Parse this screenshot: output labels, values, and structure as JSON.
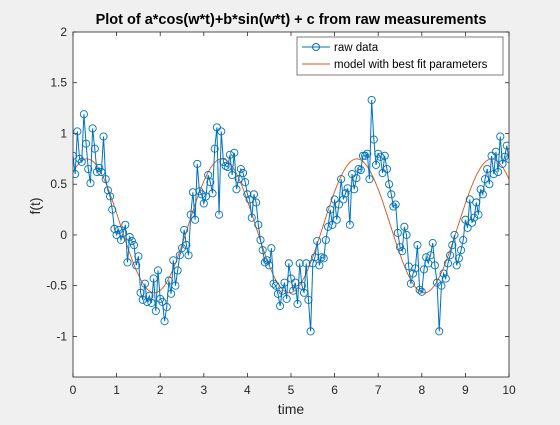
{
  "chart_data": {
    "type": "line",
    "title": "Plot of a*cos(w*t)+b*sin(w*t) + c from raw measurements",
    "xlabel": "time",
    "ylabel": "f(t)",
    "xlim": [
      0,
      10
    ],
    "ylim": [
      -1.4,
      2
    ],
    "x_ticks": [
      "0",
      "1",
      "2",
      "3",
      "4",
      "5",
      "6",
      "7",
      "8",
      "9",
      "10"
    ],
    "y_ticks": [
      "-1",
      "-0.5",
      "0",
      "0.5",
      "1",
      "1.5",
      "2"
    ],
    "y_tick_values": [
      -1,
      -0.5,
      0,
      0.5,
      1,
      1.5,
      2
    ],
    "legend_position": "top-right",
    "series": [
      {
        "name": "raw data",
        "style": "line-with-circle-markers",
        "color": "#0072BD",
        "x": [
          0,
          0.05,
          0.1,
          0.15,
          0.2,
          0.25,
          0.3,
          0.35,
          0.4,
          0.45,
          0.5,
          0.55,
          0.6,
          0.65,
          0.7,
          0.75,
          0.8,
          0.85,
          0.9,
          0.95,
          1,
          1.05,
          1.1,
          1.15,
          1.2,
          1.25,
          1.3,
          1.35,
          1.4,
          1.45,
          1.5,
          1.55,
          1.6,
          1.65,
          1.7,
          1.75,
          1.8,
          1.85,
          1.9,
          1.95,
          2,
          2.05,
          2.1,
          2.15,
          2.2,
          2.25,
          2.3,
          2.35,
          2.4,
          2.45,
          2.5,
          2.55,
          2.6,
          2.65,
          2.7,
          2.75,
          2.8,
          2.85,
          2.9,
          2.95,
          3,
          3.05,
          3.1,
          3.15,
          3.2,
          3.25,
          3.3,
          3.35,
          3.4,
          3.45,
          3.5,
          3.55,
          3.6,
          3.65,
          3.7,
          3.75,
          3.8,
          3.85,
          3.9,
          3.95,
          4,
          4.05,
          4.1,
          4.15,
          4.2,
          4.25,
          4.3,
          4.35,
          4.4,
          4.45,
          4.5,
          4.55,
          4.6,
          4.65,
          4.7,
          4.75,
          4.8,
          4.85,
          4.9,
          4.95,
          5,
          5.05,
          5.1,
          5.15,
          5.2,
          5.25,
          5.3,
          5.35,
          5.4,
          5.45,
          5.5,
          5.55,
          5.6,
          5.65,
          5.7,
          5.75,
          5.8,
          5.85,
          5.9,
          5.95,
          6,
          6.05,
          6.1,
          6.15,
          6.2,
          6.25,
          6.3,
          6.35,
          6.4,
          6.45,
          6.5,
          6.55,
          6.6,
          6.65,
          6.7,
          6.75,
          6.8,
          6.85,
          6.9,
          6.95,
          7,
          7.05,
          7.1,
          7.15,
          7.2,
          7.25,
          7.3,
          7.35,
          7.4,
          7.45,
          7.5,
          7.55,
          7.6,
          7.65,
          7.7,
          7.75,
          7.8,
          7.85,
          7.9,
          7.95,
          8,
          8.05,
          8.1,
          8.15,
          8.2,
          8.25,
          8.3,
          8.35,
          8.4,
          8.45,
          8.5,
          8.55,
          8.6,
          8.65,
          8.7,
          8.75,
          8.8,
          8.85,
          8.9,
          8.95,
          9,
          9.05,
          9.1,
          9.15,
          9.2,
          9.25,
          9.3,
          9.35,
          9.4,
          9.45,
          9.5,
          9.55,
          9.6,
          9.65,
          9.7,
          9.75,
          9.8,
          9.85,
          9.9,
          9.95,
          10
        ],
        "y": [
          0.78,
          0.6,
          1.02,
          0.75,
          0.72,
          1.19,
          0.9,
          0.65,
          0.51,
          1.05,
          0.85,
          0.62,
          0.66,
          0.62,
          0.97,
          0.55,
          0.44,
          0.38,
          0.25,
          0.06,
          0.0,
          0.05,
          -0.05,
          0.02,
          0.1,
          -0.27,
          -0.02,
          -0.06,
          -0.1,
          -0.3,
          -0.21,
          -0.57,
          -0.64,
          -0.48,
          -0.66,
          -0.6,
          -0.67,
          -0.43,
          -0.75,
          -0.35,
          -0.63,
          -0.66,
          -0.85,
          -0.71,
          -0.45,
          -0.58,
          -0.25,
          -0.5,
          -0.35,
          -0.2,
          -0.13,
          0.05,
          -0.1,
          -0.2,
          0.2,
          0.42,
          0.15,
          0.7,
          0.43,
          0.4,
          0.31,
          0.38,
          0.59,
          0.52,
          0.41,
          0.85,
          1.06,
          0.2,
          1.02,
          0.72,
          0.68,
          0.67,
          0.79,
          0.59,
          0.81,
          0.45,
          0.55,
          0.65,
          0.61,
          0.52,
          0.4,
          0.35,
          0.17,
          0.4,
          0.32,
          0.1,
          -0.05,
          -0.15,
          -0.27,
          -0.25,
          -0.3,
          -0.13,
          -0.48,
          -0.5,
          -0.58,
          -0.7,
          -0.55,
          -0.47,
          -0.63,
          -0.28,
          -0.43,
          -0.55,
          -0.47,
          -0.68,
          -0.28,
          -0.5,
          -0.57,
          -0.28,
          -0.64,
          -0.95,
          -0.28,
          -0.22,
          -0.06,
          -0.3,
          -0.22,
          -0.23,
          -0.05,
          0.08,
          0.25,
          0.1,
          0.35,
          0.15,
          0.3,
          0.55,
          0.35,
          0.41,
          0.46,
          0.1,
          0.6,
          0.45,
          0.56,
          0.65,
          0.64,
          0.78,
          0.78,
          0.8,
          0.55,
          1.33,
          0.94,
          0.69,
          0.8,
          0.77,
          0.61,
          0.78,
          0.65,
          0.5,
          0.4,
          0.28,
          0.3,
          0.02,
          -0.12,
          -0.16,
          0.08,
          0.0,
          -0.31,
          -0.48,
          -0.38,
          -0.33,
          -0.1,
          -0.54,
          -0.56,
          -0.34,
          -0.22,
          -0.28,
          -0.2,
          -0.08,
          -0.3,
          -0.47,
          -0.95,
          -0.5,
          -0.38,
          -0.43,
          -0.28,
          -0.2,
          -0.1,
          0.0,
          -0.3,
          -0.23,
          -0.15,
          -0.05,
          0.15,
          0.07,
          0.35,
          0.12,
          0.17,
          0.32,
          0.2,
          0.45,
          0.4,
          0.55,
          0.65,
          0.5,
          0.78,
          0.6,
          0.82,
          0.62,
          0.97,
          0.7,
          0.77,
          0.88,
          0.75
        ]
      },
      {
        "name": "model with best fit parameters",
        "style": "line",
        "color": "#D95319",
        "amplitude": 0.66,
        "angular_frequency": 2.03,
        "phase_peak_t": 0.32,
        "offset": 0.09
      }
    ]
  }
}
